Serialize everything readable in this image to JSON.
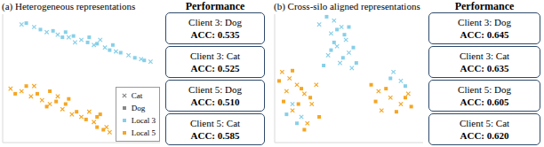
{
  "chart_data": [
    {
      "type": "scatter",
      "title": "(a) Heterogeneous representations",
      "xlim": [
        0,
        100
      ],
      "ylim": [
        0,
        100
      ],
      "tick_labels": false,
      "grid": false,
      "legend": "lower right",
      "legend_entries": [
        {
          "name": "Cat",
          "marker": "x",
          "color": "#888888"
        },
        {
          "name": "Dog",
          "marker": "square",
          "color": "#888888"
        },
        {
          "name": "Local 3",
          "marker": "square",
          "color": "#87cfe8"
        },
        {
          "name": "Local 5",
          "marker": "square",
          "color": "#f5a623"
        }
      ],
      "series": [
        {
          "name": "Cat",
          "marker": "x",
          "color": "#87cfe8",
          "x": [
            12,
            20,
            28,
            35,
            42,
            50,
            58,
            65,
            72,
            80,
            88,
            94,
            46,
            62
          ],
          "y": [
            92,
            90,
            86,
            84,
            82,
            80,
            76,
            74,
            71,
            68,
            65,
            63,
            78,
            80
          ]
        },
        {
          "name": "Dog",
          "marker": "square",
          "color": "#87cfe8",
          "x": [
            15,
            24,
            32,
            38,
            45,
            54,
            60,
            68,
            75,
            84,
            90,
            40,
            55,
            70
          ],
          "y": [
            93,
            88,
            87,
            82,
            83,
            78,
            77,
            72,
            70,
            66,
            64,
            86,
            82,
            76
          ]
        },
        {
          "name": "Cat",
          "marker": "x",
          "color": "#f5a623",
          "x": [
            5,
            12,
            18,
            25,
            30,
            38,
            44,
            50,
            58,
            66,
            68,
            20,
            35,
            55
          ],
          "y": [
            42,
            40,
            36,
            33,
            30,
            26,
            22,
            20,
            16,
            12,
            8,
            44,
            36,
            24
          ]
        },
        {
          "name": "Dog",
          "marker": "square",
          "color": "#f5a623",
          "x": [
            8,
            15,
            22,
            28,
            34,
            40,
            47,
            53,
            60,
            60,
            64,
            42,
            62,
            30
          ],
          "y": [
            38,
            44,
            38,
            28,
            32,
            30,
            24,
            18,
            20,
            12,
            10,
            34,
            22,
            40
          ]
        }
      ],
      "performance": {
        "title": "Performance",
        "items": [
          {
            "client": "Client 3: Dog",
            "acc": "ACC: 0.535"
          },
          {
            "client": "Client 3: Cat",
            "acc": "ACC: 0.525"
          },
          {
            "client": "Client 5: Dog",
            "acc": "ACC: 0.510"
          },
          {
            "client": "Client 5: Cat",
            "acc": "ACC: 0.585"
          }
        ]
      }
    },
    {
      "type": "scatter",
      "title": "(b) Cross-silo aligned representations",
      "xlim": [
        0,
        100
      ],
      "ylim": [
        0,
        100
      ],
      "tick_labels": false,
      "grid": false,
      "series": [
        {
          "name": "Cat",
          "marker": "x",
          "color": "#87cfe8",
          "x": [
            40,
            45,
            38,
            48,
            42,
            50,
            36,
            44,
            52,
            80,
            85,
            12,
            18,
            30
          ],
          "y": [
            95,
            90,
            85,
            80,
            75,
            70,
            68,
            62,
            58,
            55,
            48,
            30,
            20,
            92
          ]
        },
        {
          "name": "Dog",
          "marker": "square",
          "color": "#87cfe8",
          "x": [
            35,
            42,
            47,
            40,
            53,
            38,
            46,
            55,
            33,
            78,
            88,
            8,
            15,
            50
          ],
          "y": [
            98,
            88,
            84,
            78,
            74,
            72,
            66,
            62,
            60,
            50,
            44,
            22,
            15,
            90
          ]
        },
        {
          "name": "Cat",
          "marker": "x",
          "color": "#f5a623",
          "x": [
            5,
            10,
            15,
            8,
            20,
            25,
            12,
            22,
            70,
            78,
            85,
            72,
            90,
            28
          ],
          "y": [
            55,
            50,
            45,
            40,
            38,
            30,
            25,
            15,
            40,
            35,
            30,
            25,
            38,
            45
          ]
        },
        {
          "name": "Dog",
          "marker": "square",
          "color": "#f5a623",
          "x": [
            3,
            12,
            18,
            6,
            24,
            16,
            30,
            20,
            68,
            75,
            82,
            88,
            92,
            65
          ],
          "y": [
            48,
            56,
            42,
            32,
            35,
            30,
            20,
            10,
            32,
            42,
            24,
            35,
            28,
            45
          ]
        }
      ],
      "performance": {
        "title": "Performance",
        "items": [
          {
            "client": "Client 3: Dog",
            "acc": "ACC: 0.645"
          },
          {
            "client": "Client 3: Cat",
            "acc": "ACC: 0.635"
          },
          {
            "client": "Client 5: Dog",
            "acc": "ACC: 0.605"
          },
          {
            "client": "Client 5: Cat",
            "acc": "ACC: 0.620"
          }
        ]
      }
    }
  ]
}
